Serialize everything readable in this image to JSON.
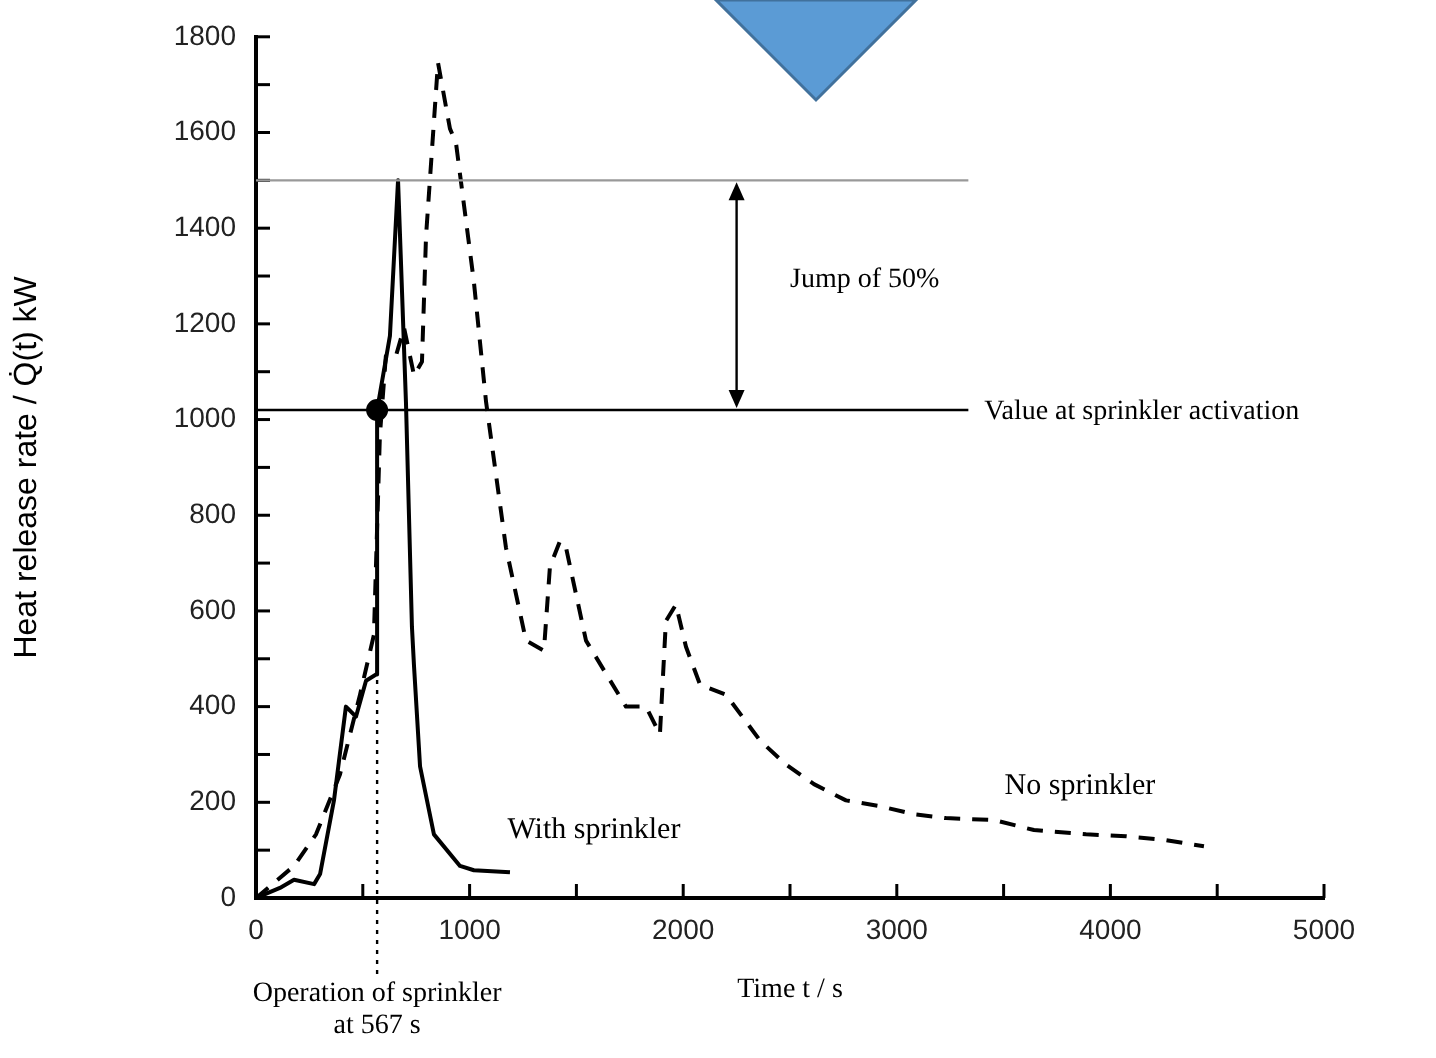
{
  "chart_data": {
    "type": "line",
    "xlabel": "Time t / s",
    "ylabel": "Heat release rate / Q̇(t) kW",
    "xlim": [
      0,
      5000
    ],
    "ylim": [
      0,
      1800
    ],
    "xticks": [
      0,
      {
        "value": 500,
        "label": null
      },
      1000,
      {
        "value": 1500,
        "label": null
      },
      2000,
      {
        "value": 2500,
        "label": null
      },
      3000,
      {
        "value": 3500,
        "label": null
      },
      4000,
      {
        "value": 4500,
        "label": null
      },
      5000
    ],
    "yticks": [
      0,
      {
        "value": 100,
        "label": null
      },
      200,
      {
        "value": 300,
        "label": null
      },
      400,
      {
        "value": 500,
        "label": null
      },
      600,
      {
        "value": 700,
        "label": null
      },
      800,
      {
        "value": 900,
        "label": null
      },
      1000,
      {
        "value": 1100,
        "label": null
      },
      1200,
      {
        "value": 1300,
        "label": null
      },
      1400,
      {
        "value": 1500,
        "label": null
      },
      1600,
      {
        "value": 1700,
        "label": null
      },
      1800
    ],
    "grid": false,
    "legend": false,
    "marker": "none",
    "series": [
      {
        "name": "With sprinkler",
        "color": "#000000",
        "line_style": "solid",
        "x": [
          0,
          112,
          178,
          272,
          300,
          365,
          421,
          468,
          515,
          562,
          567,
          627,
          665,
          702,
          730,
          740,
          768,
          833,
          955,
          1020,
          1189
        ],
        "values": [
          0,
          21,
          38,
          29,
          50,
          204,
          400,
          379,
          454,
          467,
          1020,
          1175,
          1500,
          1037,
          567,
          483,
          275,
          133,
          67,
          58,
          54
        ]
      },
      {
        "name": "No sprinkler",
        "color": "#000000",
        "line_style": "dashed",
        "x": [
          0,
          178,
          281,
          393,
          487,
          552,
          580,
          608,
          655,
          693,
          740,
          777,
          796,
          852,
          908,
          936,
          1020,
          1077,
          1170,
          1264,
          1348,
          1376,
          1423,
          1451,
          1545,
          1732,
          1826,
          1891,
          1919,
          1966,
          2013,
          2079,
          2200,
          2360,
          2481,
          2612,
          2762,
          2921,
          3080,
          3230,
          3455,
          3642,
          3886,
          4073,
          4260,
          4438
        ],
        "values": [
          0,
          67,
          133,
          258,
          425,
          550,
          967,
          1133,
          1133,
          1192,
          1092,
          1121,
          1383,
          1746,
          1608,
          1579,
          1288,
          1037,
          733,
          538,
          517,
          692,
          746,
          733,
          538,
          400,
          400,
          342,
          579,
          613,
          525,
          446,
          425,
          329,
          279,
          238,
          204,
          192,
          175,
          167,
          163,
          142,
          133,
          129,
          121,
          108
        ]
      },
      {
        "type": "scatter",
        "marker": "circle",
        "color": "#000000",
        "x": [
          567
        ],
        "values": [
          1020
        ]
      }
    ],
    "ref_lines": [
      {
        "axis": "y",
        "value": 1500,
        "color": "#999999"
      },
      {
        "axis": "y",
        "value": 1020,
        "color": "#000000",
        "label": "Value at sprinkler activation"
      },
      {
        "axis": "x",
        "value": 567,
        "color": "#000000",
        "line_style": "dotted",
        "label": "Operation of sprinkler at 567 s"
      }
    ],
    "annotations": [
      "Jump of 50%"
    ]
  }
}
